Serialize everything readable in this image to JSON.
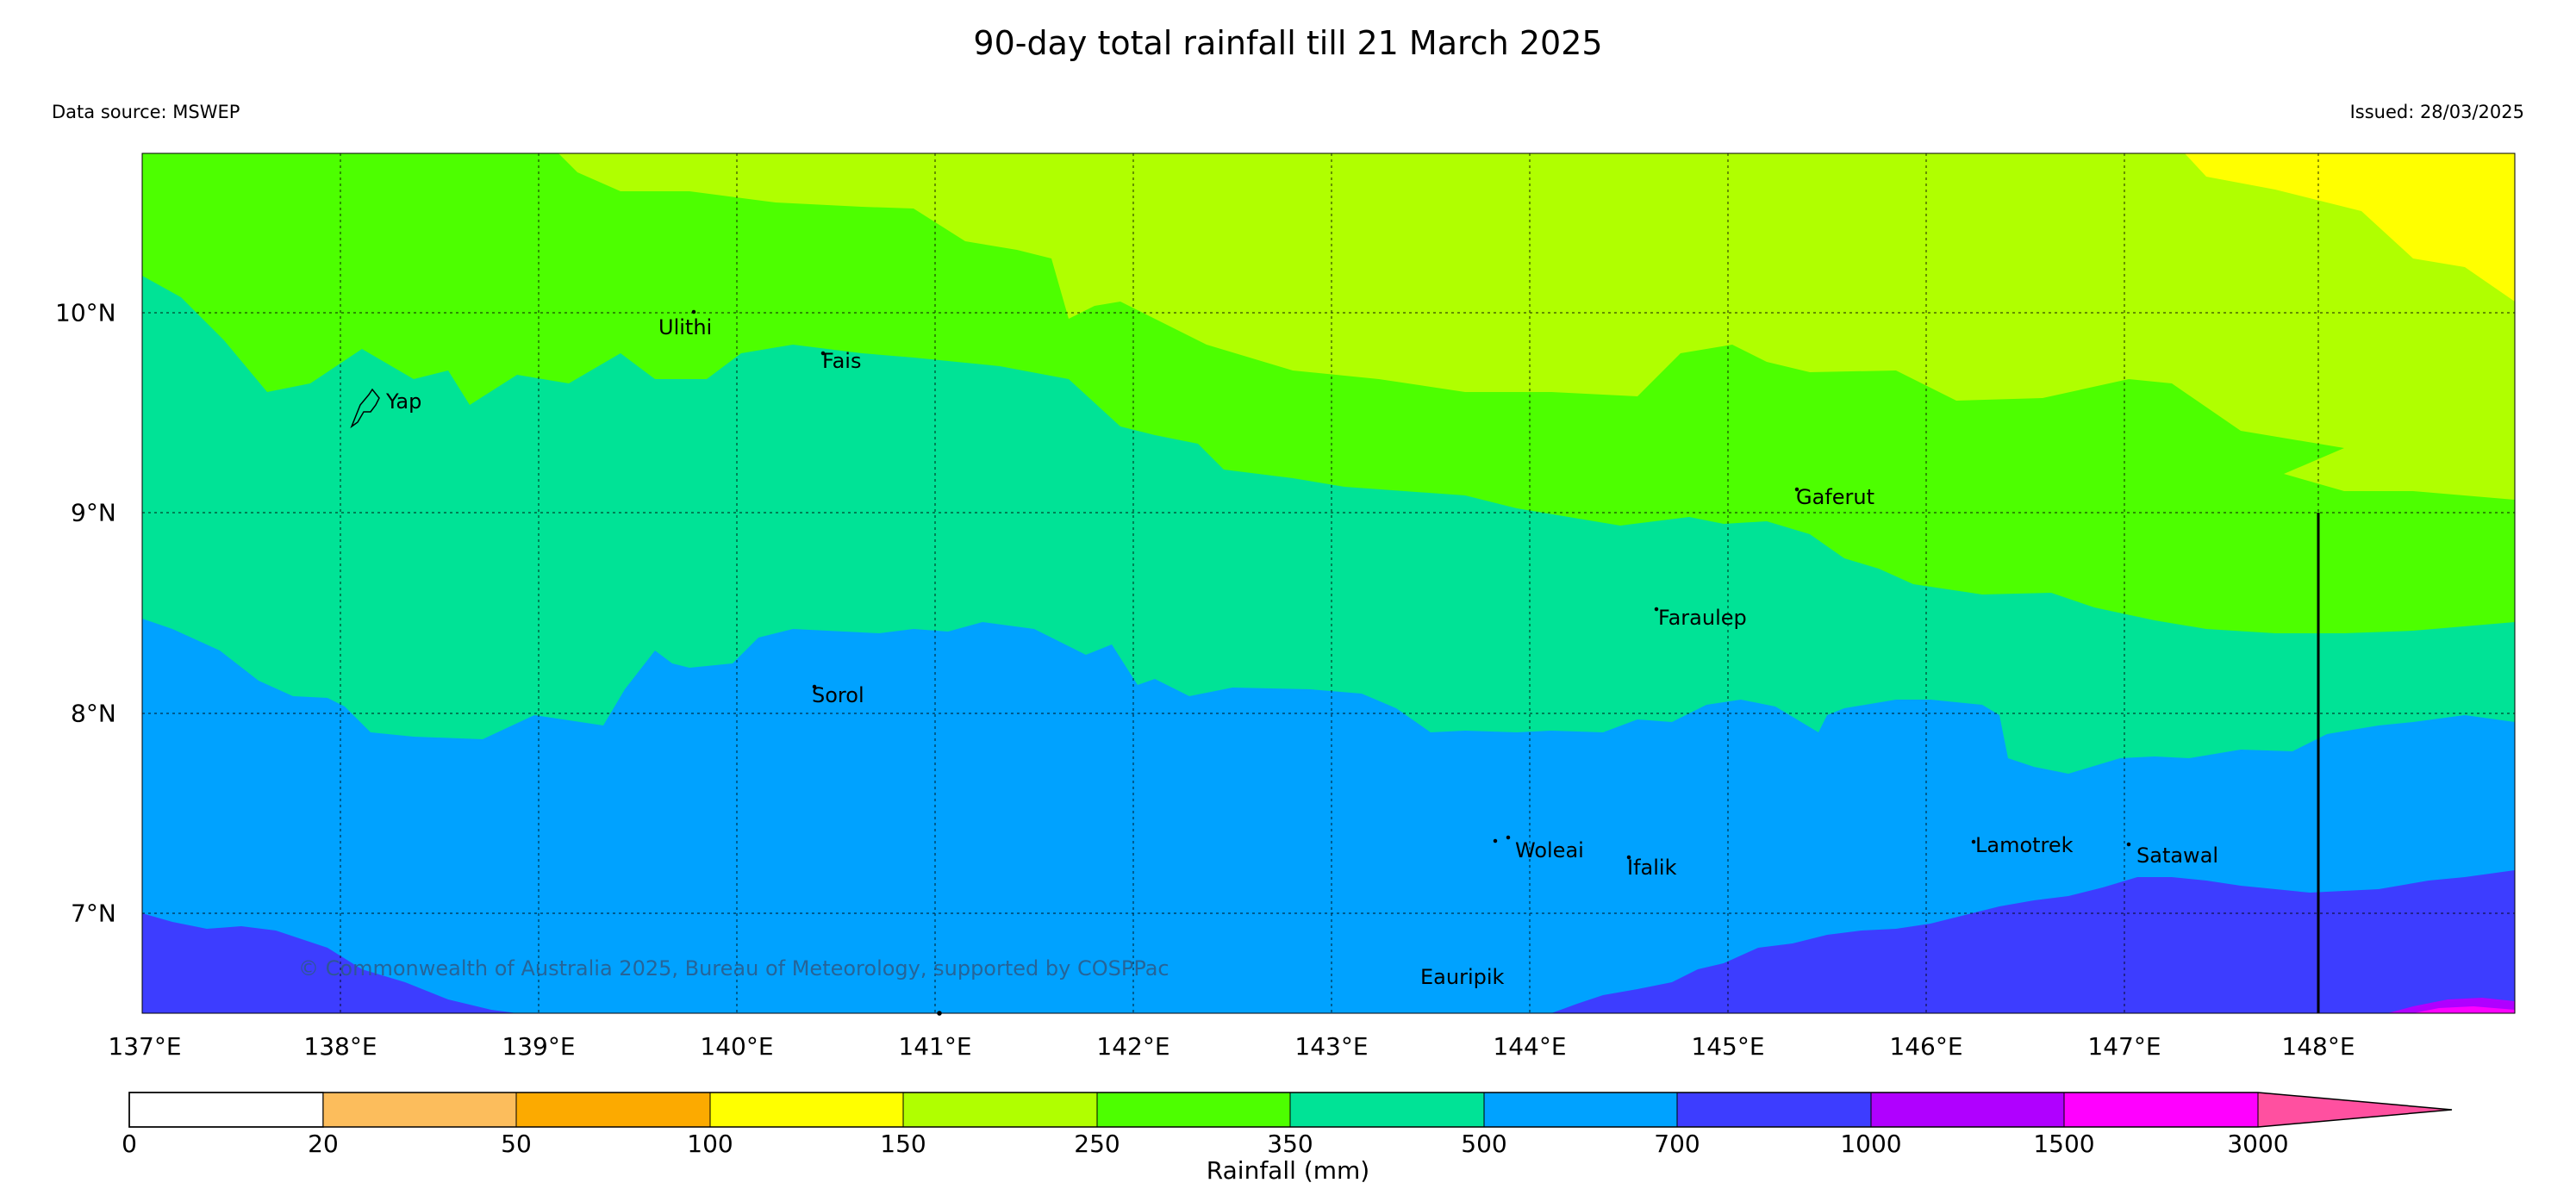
{
  "title": "90-day total rainfall till 21 March 2025",
  "data_source": "Data source: MSWEP",
  "issued": "Issued: 28/03/2025",
  "copyright": "© Commonwealth of Australia 2025, Bureau of Meteorology, supported by COSPPac",
  "lat_labels": [
    "10°N",
    "9°N",
    "8°N",
    "7°N"
  ],
  "lon_labels": [
    "137°E",
    "138°E",
    "139°E",
    "140°E",
    "141°E",
    "142°E",
    "143°E",
    "144°E",
    "145°E",
    "146°E",
    "147°E",
    "148°E"
  ],
  "places": [
    "Yap",
    "Ulithi",
    "Fais",
    "Gaferut",
    "Faraulep",
    "Sorol",
    "Woleai",
    "Ifalik",
    "Lamotrek",
    "Satawal",
    "Eauripik"
  ],
  "colorbar": {
    "label": "Rainfall (mm)",
    "ticks": [
      "0",
      "20",
      "50",
      "100",
      "150",
      "250",
      "350",
      "500",
      "700",
      "1000",
      "1500",
      "3000"
    ],
    "colors": [
      "#ffffff",
      "#fcbd5c",
      "#fcaa00",
      "#ffff00",
      "#b0ff00",
      "#4dff00",
      "#00e396",
      "#00a2ff",
      "#3d3dff",
      "#b000ff",
      "#ff00ff",
      "#ff50a0"
    ]
  },
  "legend_colors": {
    "band_150_250": "#b0ff00",
    "band_250_350": "#4dff00",
    "band_350_500": "#00e396",
    "band_500_700": "#00a2ff",
    "band_700_1000": "#3d3dff",
    "band_1000_1500": "#b000ff",
    "band_1500_3000": "#ff00ff",
    "band_100_150": "#ffff00"
  }
}
